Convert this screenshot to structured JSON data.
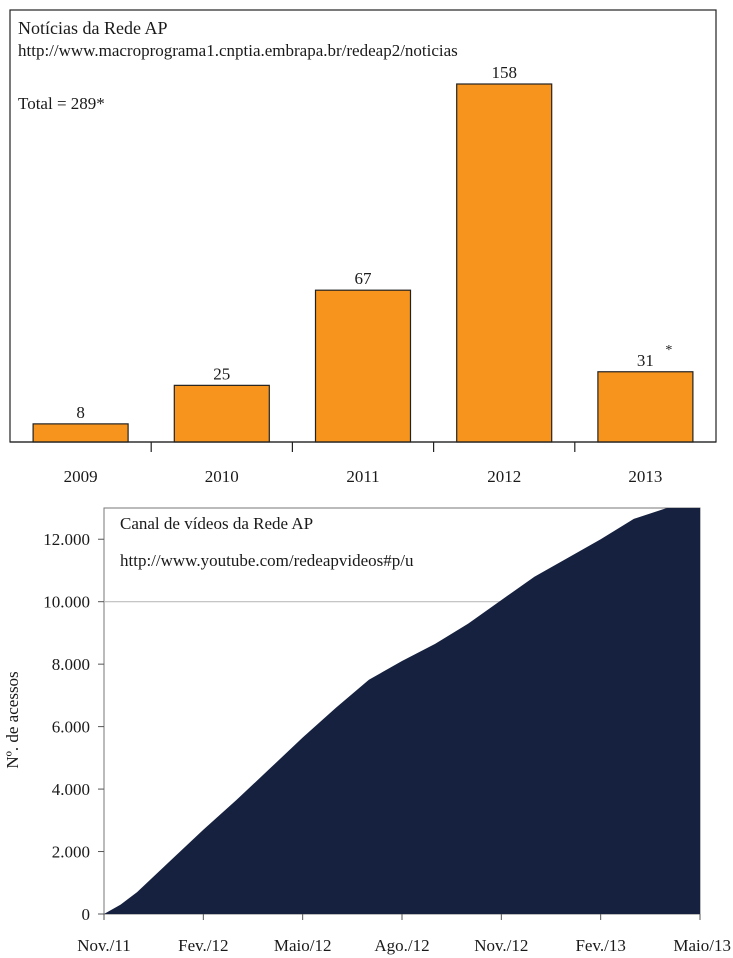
{
  "chart_data": [
    {
      "type": "bar",
      "title": "Notícias da Rede AP",
      "subtitle": "http://www.macroprograma1.cnptia.embrapa.br/redeap2/noticias",
      "note": "Total = 289*",
      "categories": [
        "2009",
        "2010",
        "2011",
        "2012",
        "2013"
      ],
      "values": [
        8,
        25,
        67,
        158,
        31
      ],
      "value_labels": [
        "8",
        "25",
        "67",
        "158",
        "31"
      ],
      "footnote_mark": "*",
      "ylim": [
        0,
        180
      ],
      "bar_color": "#F7941D",
      "grid": false
    },
    {
      "type": "area",
      "title": "Canal de vídeos da Rede AP",
      "subtitle": "http://www.youtube.com/redeapvideos#p/u",
      "ylabel": "Nº. de acessos",
      "x_ticks": [
        "Nov./11",
        "Fev./12",
        "Maio/12",
        "Ago./12",
        "Nov./12",
        "Fev./13",
        "Maio/13"
      ],
      "y_ticks": [
        "0",
        "2.000",
        "4.000",
        "6.000",
        "8.000",
        "10.000",
        "12.000"
      ],
      "y_tick_values": [
        0,
        2000,
        4000,
        6000,
        8000,
        10000,
        12000
      ],
      "ylim": [
        0,
        13000
      ],
      "x": [
        0,
        0.5,
        1,
        2,
        3,
        4,
        5,
        6,
        7,
        8,
        9,
        10,
        11,
        12,
        13,
        14,
        15,
        16,
        17,
        18
      ],
      "values": [
        0,
        300,
        700,
        1700,
        2700,
        3650,
        4650,
        5650,
        6600,
        7500,
        8100,
        8650,
        9300,
        10050,
        10800,
        11400,
        12000,
        12650,
        13000,
        13000
      ],
      "fill_color": "#15213F",
      "grid": true
    }
  ]
}
